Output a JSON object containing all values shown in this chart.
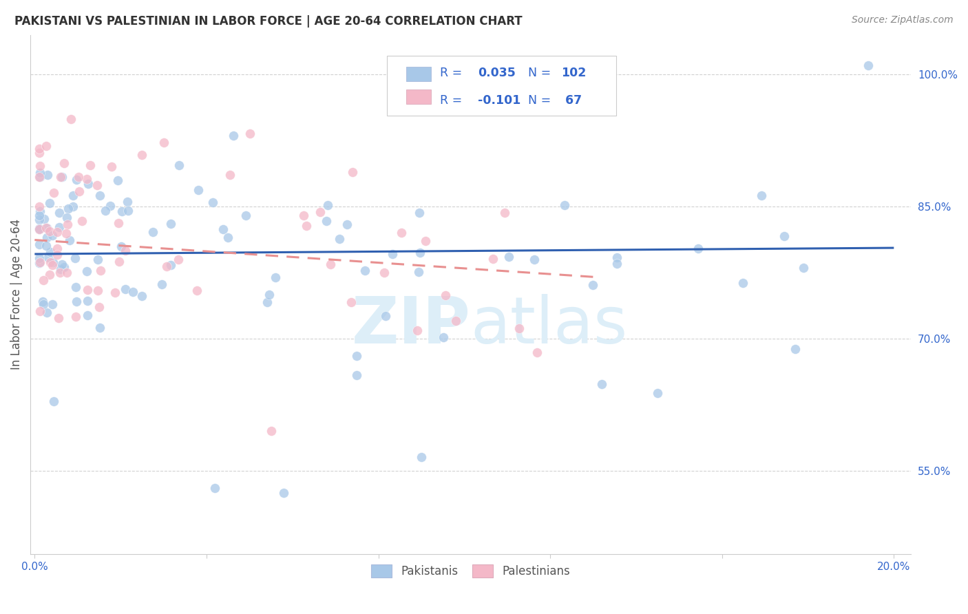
{
  "title": "PAKISTANI VS PALESTINIAN IN LABOR FORCE | AGE 20-64 CORRELATION CHART",
  "source": "Source: ZipAtlas.com",
  "ylabel": "In Labor Force | Age 20-64",
  "xlim": [
    -0.001,
    0.204
  ],
  "ylim": [
    0.455,
    1.045
  ],
  "xtick_positions": [
    0.0,
    0.04,
    0.08,
    0.12,
    0.16,
    0.2
  ],
  "xticklabels": [
    "0.0%",
    "",
    "",
    "",
    "",
    "20.0%"
  ],
  "ytick_right_values": [
    1.0,
    0.85,
    0.7,
    0.55
  ],
  "ytick_right_labels": [
    "100.0%",
    "85.0%",
    "70.0%",
    "55.0%"
  ],
  "pakistani_color": "#a8c8e8",
  "palestinian_color": "#f4b8c8",
  "pakistani_line_color": "#3060b0",
  "palestinian_line_color": "#e89090",
  "background_color": "#ffffff",
  "grid_color": "#cccccc",
  "watermark_color": "#ddeef8",
  "tick_label_color": "#3366cc",
  "legend_text_color": "#3366cc",
  "legend_border_color": "#cccccc",
  "ylabel_color": "#555555",
  "title_color": "#333333",
  "source_color": "#888888",
  "scatter_size": 100,
  "scatter_alpha": 0.75,
  "pakistani_R": 0.035,
  "pakistani_N": 102,
  "palestinian_R": -0.101,
  "palestinian_N": 67
}
